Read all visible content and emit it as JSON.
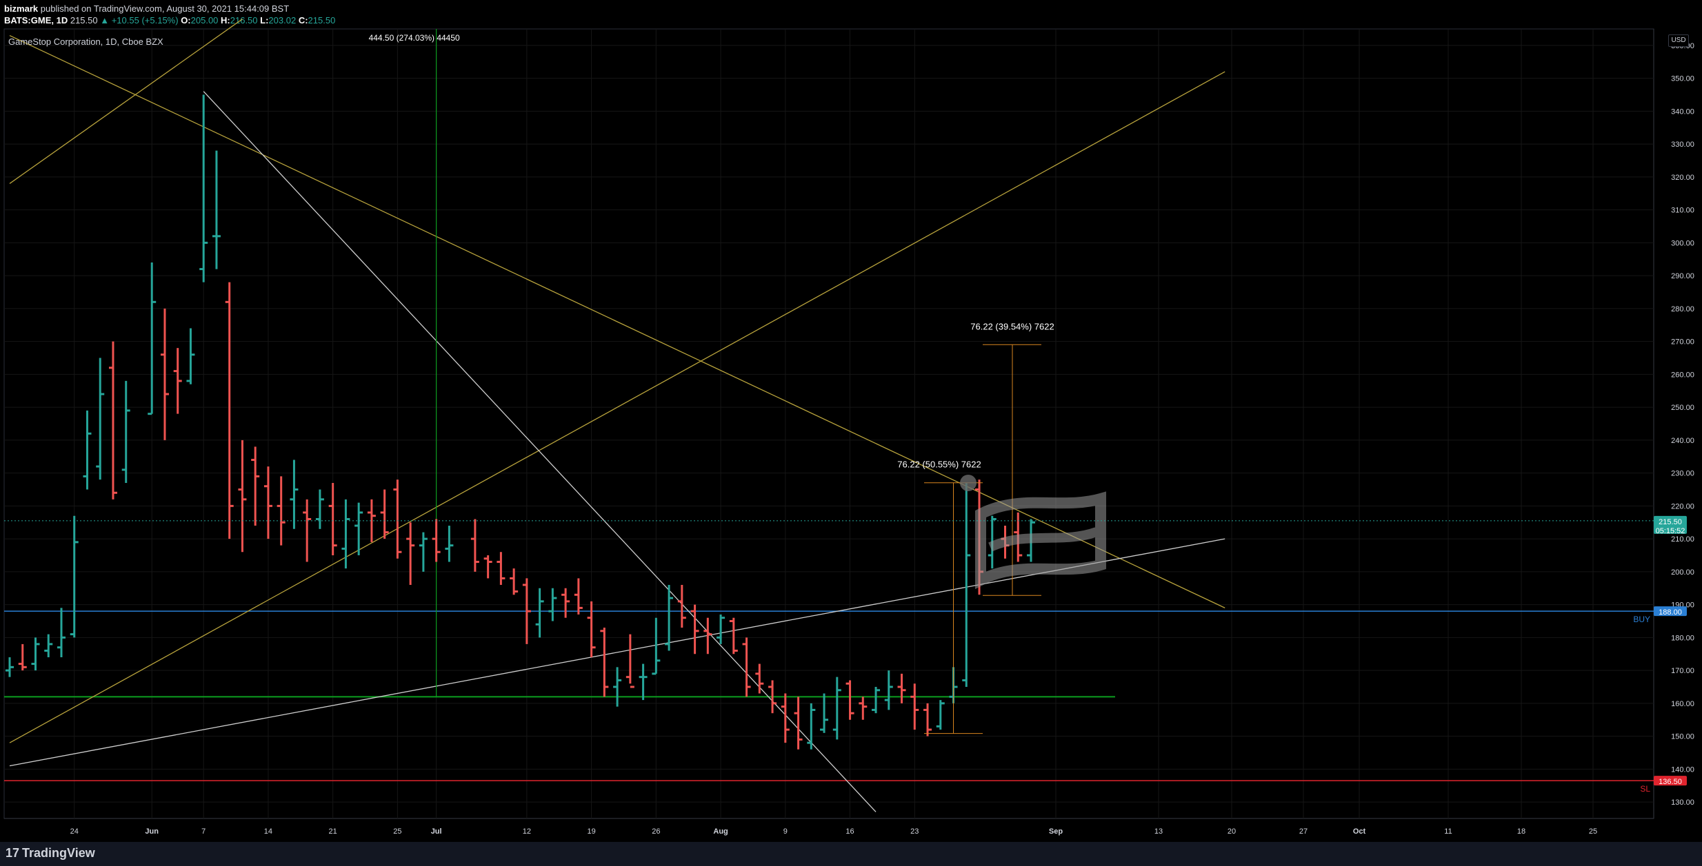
{
  "header": {
    "author": "bizmark",
    "published": "published on TradingView.com, August 30, 2021 15:44:09 BST",
    "symbol": "BATS:GME, 1D",
    "last": "215.50",
    "change": "▲ +10.55 (+5.15%)",
    "o_label": "O:",
    "o": "205.00",
    "h_label": "H:",
    "h": "216.50",
    "l_label": "L:",
    "l": "203.02",
    "c_label": "C:",
    "c": "215.50"
  },
  "legend_title": "GameStop Corporation, 1D, Cboe BZX",
  "currency": "USD",
  "footer": {
    "brand": "TradingView",
    "mark": "17"
  },
  "colors": {
    "up": "#26a69a",
    "down": "#ef5350",
    "fib": "#b8a33c",
    "hline_green": "#0c9e1f",
    "hline_red": "#e0242e",
    "hline_blue": "#2a7fd4",
    "measure": "#d9861f",
    "grid": "#161616"
  },
  "annotations": {
    "vertical_measure": "444.50 (274.03%) 44450",
    "measure1": "76.22 (50.55%) 7622",
    "measure2": "76.22 (39.54%) 7622",
    "buy_label": "BUY",
    "sl_label": "SL"
  },
  "price_tags": {
    "last": "215.50",
    "countdown": "05:15:52",
    "buy": "188.00",
    "sl": "136.50"
  },
  "chart_data": {
    "type": "ohlc",
    "ylim": [
      125,
      365
    ],
    "y_ticks": [
      130,
      140,
      150,
      160,
      170,
      180,
      190,
      200,
      210,
      220,
      230,
      240,
      250,
      260,
      270,
      280,
      290,
      300,
      310,
      320,
      330,
      340,
      350,
      360
    ],
    "x_ticks": [
      "24",
      "Jun",
      "7",
      "14",
      "21",
      "Jul",
      "12",
      "19",
      "26",
      "Aug",
      "9",
      "16",
      "23",
      "Sep",
      "13",
      "20",
      "27",
      "Oct",
      "11",
      "18",
      "25"
    ],
    "x_ticks_extra": [
      {
        "label": "25",
        "date": "2021-06-28"
      }
    ],
    "bars": [
      {
        "date": "2021-05-17",
        "o": 170,
        "h": 174,
        "l": 168,
        "c": 171
      },
      {
        "date": "2021-05-18",
        "o": 172,
        "h": 178,
        "l": 170,
        "c": 171
      },
      {
        "date": "2021-05-19",
        "o": 172,
        "h": 180,
        "l": 170,
        "c": 178
      },
      {
        "date": "2021-05-20",
        "o": 176,
        "h": 181,
        "l": 174,
        "c": 178
      },
      {
        "date": "2021-05-21",
        "o": 177,
        "h": 189,
        "l": 174,
        "c": 180
      },
      {
        "date": "2021-05-24",
        "o": 181,
        "h": 217,
        "l": 180,
        "c": 209
      },
      {
        "date": "2021-05-25",
        "o": 229,
        "h": 249,
        "l": 225,
        "c": 242
      },
      {
        "date": "2021-05-26",
        "o": 232,
        "h": 265,
        "l": 228,
        "c": 254
      },
      {
        "date": "2021-05-27",
        "o": 262,
        "h": 270,
        "l": 222,
        "c": 224
      },
      {
        "date": "2021-05-28",
        "o": 231,
        "h": 258,
        "l": 227,
        "c": 249
      },
      {
        "date": "2021-06-01",
        "o": 248,
        "h": 294,
        "l": 248,
        "c": 282
      },
      {
        "date": "2021-06-02",
        "o": 266,
        "h": 280,
        "l": 240,
        "c": 254
      },
      {
        "date": "2021-06-03",
        "o": 261,
        "h": 268,
        "l": 248,
        "c": 258
      },
      {
        "date": "2021-06-04",
        "o": 258,
        "h": 274,
        "l": 257,
        "c": 266
      },
      {
        "date": "2021-06-07",
        "o": 292,
        "h": 345,
        "l": 288,
        "c": 300
      },
      {
        "date": "2021-06-08",
        "o": 302,
        "h": 328,
        "l": 292,
        "c": 302
      },
      {
        "date": "2021-06-09",
        "o": 282,
        "h": 288,
        "l": 210,
        "c": 220
      },
      {
        "date": "2021-06-10",
        "o": 225,
        "h": 240,
        "l": 206,
        "c": 222
      },
      {
        "date": "2021-06-11",
        "o": 234,
        "h": 238,
        "l": 214,
        "c": 229
      },
      {
        "date": "2021-06-14",
        "o": 226,
        "h": 232,
        "l": 210,
        "c": 220
      },
      {
        "date": "2021-06-15",
        "o": 220,
        "h": 229,
        "l": 208,
        "c": 215
      },
      {
        "date": "2021-06-16",
        "o": 222,
        "h": 234,
        "l": 213,
        "c": 225
      },
      {
        "date": "2021-06-17",
        "o": 218,
        "h": 222,
        "l": 203,
        "c": 216
      },
      {
        "date": "2021-06-18",
        "o": 216,
        "h": 225,
        "l": 213,
        "c": 222
      },
      {
        "date": "2021-06-21",
        "o": 220,
        "h": 227,
        "l": 205,
        "c": 208
      },
      {
        "date": "2021-06-22",
        "o": 207,
        "h": 222,
        "l": 201,
        "c": 216
      },
      {
        "date": "2021-06-23",
        "o": 214,
        "h": 221,
        "l": 205,
        "c": 218
      },
      {
        "date": "2021-06-24",
        "o": 218,
        "h": 222,
        "l": 209,
        "c": 217
      },
      {
        "date": "2021-06-25",
        "o": 218,
        "h": 225,
        "l": 210,
        "c": 212
      },
      {
        "date": "2021-06-28",
        "o": 225,
        "h": 228,
        "l": 204,
        "c": 206
      },
      {
        "date": "2021-06-29",
        "o": 210,
        "h": 215,
        "l": 196,
        "c": 208
      },
      {
        "date": "2021-06-30",
        "o": 208,
        "h": 212,
        "l": 200,
        "c": 210
      },
      {
        "date": "2021-07-01",
        "o": 210,
        "h": 216,
        "l": 203,
        "c": 206
      },
      {
        "date": "2021-07-02",
        "o": 207,
        "h": 214,
        "l": 203,
        "c": 208
      },
      {
        "date": "2021-07-06",
        "o": 210,
        "h": 216,
        "l": 200,
        "c": 203
      },
      {
        "date": "2021-07-07",
        "o": 204,
        "h": 205,
        "l": 198,
        "c": 203
      },
      {
        "date": "2021-07-08",
        "o": 203,
        "h": 206,
        "l": 196,
        "c": 198
      },
      {
        "date": "2021-07-09",
        "o": 198,
        "h": 201,
        "l": 193,
        "c": 194
      },
      {
        "date": "2021-07-12",
        "o": 196,
        "h": 198,
        "l": 178,
        "c": 188
      },
      {
        "date": "2021-07-13",
        "o": 184,
        "h": 195,
        "l": 180,
        "c": 191
      },
      {
        "date": "2021-07-14",
        "o": 188,
        "h": 195,
        "l": 185,
        "c": 192
      },
      {
        "date": "2021-07-15",
        "o": 193,
        "h": 195,
        "l": 186,
        "c": 191
      },
      {
        "date": "2021-07-16",
        "o": 193,
        "h": 198,
        "l": 187,
        "c": 189
      },
      {
        "date": "2021-07-19",
        "o": 186,
        "h": 191,
        "l": 174,
        "c": 177
      },
      {
        "date": "2021-07-20",
        "o": 182,
        "h": 183,
        "l": 162,
        "c": 165
      },
      {
        "date": "2021-07-21",
        "o": 165,
        "h": 171,
        "l": 159,
        "c": 167
      },
      {
        "date": "2021-07-22",
        "o": 168,
        "h": 181,
        "l": 166,
        "c": 165
      },
      {
        "date": "2021-07-23",
        "o": 168,
        "h": 172,
        "l": 161,
        "c": 168
      },
      {
        "date": "2021-07-26",
        "o": 169,
        "h": 186,
        "l": 169,
        "c": 173
      },
      {
        "date": "2021-07-27",
        "o": 178,
        "h": 196,
        "l": 176,
        "c": 192
      },
      {
        "date": "2021-07-28",
        "o": 191,
        "h": 196,
        "l": 183,
        "c": 186
      },
      {
        "date": "2021-07-29",
        "o": 188,
        "h": 190,
        "l": 175,
        "c": 182
      },
      {
        "date": "2021-07-30",
        "o": 182,
        "h": 186,
        "l": 175,
        "c": 181
      },
      {
        "date": "2021-08-02",
        "o": 180,
        "h": 187,
        "l": 178,
        "c": 186
      },
      {
        "date": "2021-08-03",
        "o": 185,
        "h": 186,
        "l": 175,
        "c": 176
      },
      {
        "date": "2021-08-04",
        "o": 178,
        "h": 180,
        "l": 162,
        "c": 165
      },
      {
        "date": "2021-08-05",
        "o": 169,
        "h": 172,
        "l": 163,
        "c": 166
      },
      {
        "date": "2021-08-06",
        "o": 165,
        "h": 167,
        "l": 157,
        "c": 160
      },
      {
        "date": "2021-08-09",
        "o": 159,
        "h": 163,
        "l": 148,
        "c": 152
      },
      {
        "date": "2021-08-10",
        "o": 157,
        "h": 162,
        "l": 146,
        "c": 149
      },
      {
        "date": "2021-08-11",
        "o": 148,
        "h": 160,
        "l": 146,
        "c": 158
      },
      {
        "date": "2021-08-12",
        "o": 152,
        "h": 163,
        "l": 151,
        "c": 155
      },
      {
        "date": "2021-08-13",
        "o": 152,
        "h": 168,
        "l": 149,
        "c": 164
      },
      {
        "date": "2021-08-16",
        "o": 166,
        "h": 167,
        "l": 155,
        "c": 157
      },
      {
        "date": "2021-08-17",
        "o": 160,
        "h": 162,
        "l": 155,
        "c": 159
      },
      {
        "date": "2021-08-18",
        "o": 158,
        "h": 165,
        "l": 157,
        "c": 164
      },
      {
        "date": "2021-08-19",
        "o": 161,
        "h": 170,
        "l": 158,
        "c": 165
      },
      {
        "date": "2021-08-20",
        "o": 165,
        "h": 169,
        "l": 160,
        "c": 164
      },
      {
        "date": "2021-08-23",
        "o": 162,
        "h": 166,
        "l": 152,
        "c": 158
      },
      {
        "date": "2021-08-24",
        "o": 158,
        "h": 160,
        "l": 150,
        "c": 152
      },
      {
        "date": "2021-08-25",
        "o": 153,
        "h": 161,
        "l": 152,
        "c": 160
      },
      {
        "date": "2021-08-26",
        "o": 162,
        "h": 171,
        "l": 160,
        "c": 165
      },
      {
        "date": "2021-08-27",
        "o": 167,
        "h": 227,
        "l": 165,
        "c": 205
      },
      {
        "date": "2021-08-30",
        "o": 225,
        "h": 228,
        "l": 193,
        "c": 200
      },
      {
        "date": "2021-08-31",
        "o": 205,
        "h": 217,
        "l": 201,
        "c": 216
      },
      {
        "date": "2021-09-01",
        "o": 210,
        "h": 214,
        "l": 204,
        "c": 208
      },
      {
        "date": "2021-09-02",
        "o": 212,
        "h": 218,
        "l": 203,
        "c": 205
      },
      {
        "date": "2021-09-03",
        "o": 205,
        "h": 216,
        "l": 203,
        "c": 215
      }
    ],
    "hlines": [
      {
        "price": 162,
        "color": "green"
      },
      {
        "price": 188,
        "color": "blue",
        "label": "BUY"
      },
      {
        "price": 136.5,
        "color": "red",
        "label": "SL"
      }
    ],
    "lines": [
      {
        "color": "fib",
        "from": {
          "date": "2021-05-17",
          "price": 363
        },
        "to": {
          "date": "2021-09-26",
          "price": 189
        }
      },
      {
        "color": "fib",
        "from": {
          "date": "2021-05-17",
          "price": 318
        },
        "to": {
          "date": "2021-06-10",
          "price": 368
        }
      },
      {
        "color": "fib",
        "from": {
          "date": "2021-05-17",
          "price": 148
        },
        "to": {
          "date": "2021-09-26",
          "price": 352
        }
      },
      {
        "color": "white",
        "from": {
          "date": "2021-06-07",
          "price": 346
        },
        "to": {
          "date": "2021-08-18",
          "price": 127
        }
      },
      {
        "color": "white",
        "from": {
          "date": "2021-05-17",
          "price": 141
        },
        "to": {
          "date": "2021-09-26",
          "price": 210
        }
      }
    ]
  }
}
